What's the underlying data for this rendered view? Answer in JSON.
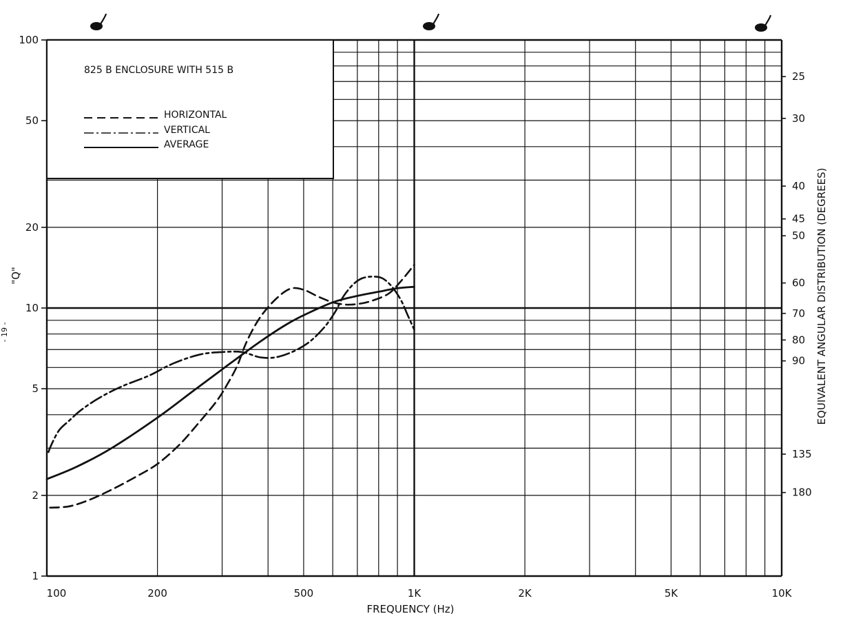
{
  "page_marker": "- 19 -",
  "chart_data": {
    "type": "line",
    "title": "825 B  ENCLOSURE WITH  515 B",
    "xlabel": "FREQUENCY (Hz)",
    "ylabel": "\"Q\"",
    "ylabel_right": "EQUIVALENT ANGULAR DISTRIBUTION (DEGREES)",
    "x_scale": "log",
    "y_scale": "log",
    "xlim": [
      100,
      10000
    ],
    "ylim": [
      1,
      100
    ],
    "grid": true,
    "legend_position": "top-left",
    "x_ticks": [
      {
        "value": 100,
        "label": "100"
      },
      {
        "value": 200,
        "label": "200"
      },
      {
        "value": 500,
        "label": "500"
      },
      {
        "value": 1000,
        "label": "1K"
      },
      {
        "value": 2000,
        "label": "2K"
      },
      {
        "value": 5000,
        "label": "5K"
      },
      {
        "value": 10000,
        "label": "10K"
      }
    ],
    "y_ticks": [
      {
        "value": 1,
        "label": "1"
      },
      {
        "value": 2,
        "label": "2"
      },
      {
        "value": 5,
        "label": "5"
      },
      {
        "value": 10,
        "label": "10"
      },
      {
        "value": 20,
        "label": "20"
      },
      {
        "value": 50,
        "label": "50"
      },
      {
        "value": 100,
        "label": "100"
      }
    ],
    "right_ticks": [
      {
        "q": 73,
        "label": "25"
      },
      {
        "q": 51,
        "label": "30"
      },
      {
        "q": 28.5,
        "label": "40"
      },
      {
        "q": 21.5,
        "label": "45"
      },
      {
        "q": 18.6,
        "label": "50"
      },
      {
        "q": 12.4,
        "label": "60"
      },
      {
        "q": 9.55,
        "label": "70"
      },
      {
        "q": 7.6,
        "label": "80"
      },
      {
        "q": 6.35,
        "label": "90"
      },
      {
        "q": 2.85,
        "label": "135"
      },
      {
        "q": 2.05,
        "label": "180"
      }
    ],
    "series": [
      {
        "name": "HORIZONTAL",
        "style": "dashed",
        "points": [
          [
            102,
            1.8
          ],
          [
            115,
            1.82
          ],
          [
            130,
            1.92
          ],
          [
            150,
            2.1
          ],
          [
            175,
            2.35
          ],
          [
            200,
            2.62
          ],
          [
            230,
            3.1
          ],
          [
            260,
            3.75
          ],
          [
            290,
            4.5
          ],
          [
            310,
            5.2
          ],
          [
            330,
            6.1
          ],
          [
            350,
            7.5
          ],
          [
            380,
            9.2
          ],
          [
            420,
            10.8
          ],
          [
            460,
            11.8
          ],
          [
            500,
            11.7
          ],
          [
            550,
            11
          ],
          [
            600,
            10.5
          ],
          [
            650,
            10.3
          ],
          [
            700,
            10.35
          ],
          [
            760,
            10.6
          ],
          [
            850,
            11.3
          ],
          [
            920,
            12.6
          ],
          [
            1000,
            14.5
          ]
        ]
      },
      {
        "name": "VERTICAL",
        "style": "dash-dot",
        "points": [
          [
            101,
            2.9
          ],
          [
            103,
            3.1
          ],
          [
            108,
            3.5
          ],
          [
            115,
            3.8
          ],
          [
            125,
            4.2
          ],
          [
            140,
            4.65
          ],
          [
            160,
            5.1
          ],
          [
            190,
            5.6
          ],
          [
            220,
            6.2
          ],
          [
            260,
            6.7
          ],
          [
            300,
            6.85
          ],
          [
            340,
            6.85
          ],
          [
            380,
            6.55
          ],
          [
            420,
            6.55
          ],
          [
            470,
            6.9
          ],
          [
            520,
            7.5
          ],
          [
            570,
            8.5
          ],
          [
            610,
            9.7
          ],
          [
            640,
            11
          ],
          [
            680,
            12.2
          ],
          [
            720,
            12.9
          ],
          [
            770,
            13.1
          ],
          [
            820,
            12.9
          ],
          [
            870,
            12
          ],
          [
            920,
            10.7
          ],
          [
            960,
            9.4
          ],
          [
            1000,
            8.3
          ]
        ]
      },
      {
        "name": "AVERAGE",
        "style": "solid",
        "points": [
          [
            100,
            2.3
          ],
          [
            120,
            2.55
          ],
          [
            150,
            3.0
          ],
          [
            200,
            3.9
          ],
          [
            250,
            4.9
          ],
          [
            300,
            5.9
          ],
          [
            350,
            6.9
          ],
          [
            400,
            7.85
          ],
          [
            450,
            8.7
          ],
          [
            500,
            9.4
          ],
          [
            600,
            10.5
          ],
          [
            700,
            11.1
          ],
          [
            800,
            11.5
          ],
          [
            900,
            11.85
          ],
          [
            1000,
            12.0
          ]
        ]
      }
    ]
  }
}
